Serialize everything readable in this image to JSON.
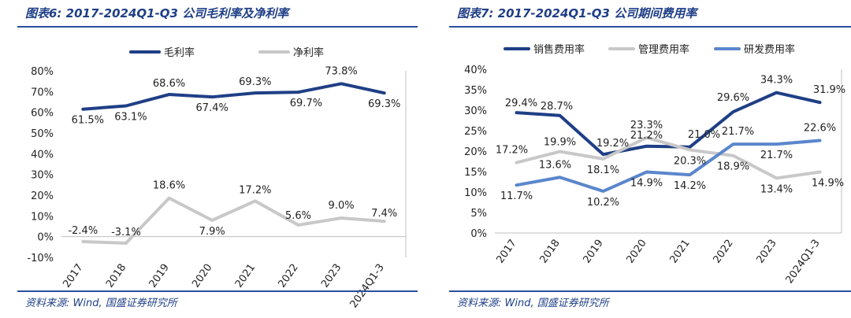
{
  "left_panel": {
    "title": "图表6: 2017-2024Q1-Q3 公司毛利率及净利率",
    "source": "资料来源: Wind, 国盛证券研究所"
  },
  "right_panel": {
    "title": "图表7: 2017-2024Q1-Q3 公司期间费用率",
    "source": "资料来源: Wind, 国盛证券研究所"
  },
  "chart_data": [
    {
      "type": "line",
      "categories": [
        "2017",
        "2018",
        "2019",
        "2020",
        "2021",
        "2022",
        "2023",
        "2024Q1-3"
      ],
      "series": [
        {
          "name": "毛利率",
          "color": "#1f3f86",
          "values": [
            61.5,
            63.1,
            68.6,
            67.4,
            69.3,
            69.7,
            73.8,
            69.3
          ],
          "labels": [
            "61.5%",
            "63.1%",
            "68.6%",
            "67.4%",
            "69.3%",
            "69.7%",
            "73.8%",
            "69.3%"
          ]
        },
        {
          "name": "净利率",
          "color": "#c8c8c8",
          "values": [
            -2.4,
            -3.1,
            18.6,
            7.9,
            17.2,
            5.6,
            9.0,
            7.4
          ],
          "labels": [
            "-2.4%",
            "-3.1%",
            "18.6%",
            "7.9%",
            "17.2%",
            "5.6%",
            "9.0%",
            "7.4%"
          ]
        }
      ],
      "ylim": [
        -10,
        80
      ],
      "yticks": [
        "-10%",
        "0%",
        "10%",
        "20%",
        "30%",
        "40%",
        "50%",
        "60%",
        "70%",
        "80%"
      ],
      "legend": "top"
    },
    {
      "type": "line",
      "categories": [
        "2017",
        "2018",
        "2019",
        "2020",
        "2021",
        "2022",
        "2023",
        "2024Q1-3"
      ],
      "series": [
        {
          "name": "销售费用率",
          "color": "#1f3f86",
          "values": [
            29.4,
            28.7,
            19.2,
            21.2,
            21.0,
            29.6,
            34.3,
            31.9
          ],
          "labels": [
            "29.4%",
            "28.7%",
            "19.2%",
            "21.2%",
            "21.0%",
            "29.6%",
            "34.3%",
            "31.9%"
          ]
        },
        {
          "name": "管理费用率",
          "color": "#c8c8c8",
          "values": [
            17.2,
            19.9,
            18.1,
            23.3,
            20.3,
            18.9,
            13.4,
            14.9
          ],
          "labels": [
            "17.2%",
            "19.9%",
            "18.1%",
            "23.3%",
            "20.3%",
            "18.9%",
            "13.4%",
            "14.9%"
          ]
        },
        {
          "name": "研发费用率",
          "color": "#5a86cc",
          "values": [
            11.7,
            13.6,
            10.2,
            14.9,
            14.2,
            21.7,
            21.7,
            22.6
          ],
          "labels": [
            "11.7%",
            "13.6%",
            "10.2%",
            "14.9%",
            "14.2%",
            "21.7%",
            "21.7%",
            "22.6%"
          ]
        }
      ],
      "ylim": [
        0,
        40
      ],
      "yticks": [
        "0%",
        "5%",
        "10%",
        "15%",
        "20%",
        "25%",
        "30%",
        "35%",
        "40%"
      ],
      "legend": "top"
    }
  ]
}
